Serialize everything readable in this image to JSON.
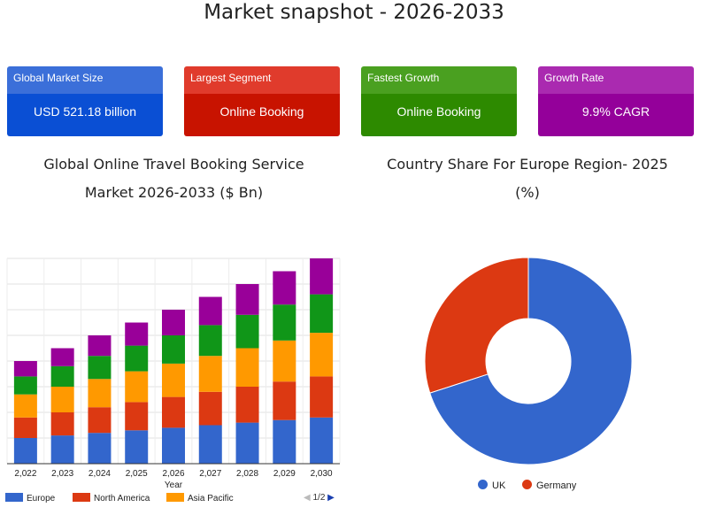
{
  "page_title": "Market snapshot - 2026-2033",
  "cards": [
    {
      "label": "Global Market Size",
      "value": "USD 521.18 billion",
      "header_color": "#3b6fd9",
      "body_color": "#0a4fd4"
    },
    {
      "label": "Largest Segment",
      "value": "Online Booking",
      "header_color": "#e03b2c",
      "body_color": "#c81300"
    },
    {
      "label": "Fastest Growth",
      "value": "Online Booking",
      "header_color": "#4aa020",
      "body_color": "#2d8a00"
    },
    {
      "label": "Growth Rate",
      "value": "9.9% CAGR",
      "header_color": "#aa2ab0",
      "body_color": "#94009a"
    }
  ],
  "bar_chart_title": {
    "line1": "Global Online Travel Booking Service",
    "line2": "Market 2026-2033 ($ Bn)"
  },
  "pie_chart_title": {
    "line1": "Country Share For Europe Region- 2025",
    "line2": "(%)"
  },
  "legend_pager": {
    "prev": "◀",
    "page": "1/2",
    "next": "▶"
  },
  "chart_data": [
    {
      "type": "bar",
      "stacked": true,
      "title": "Global Online Travel Booking Service Market 2026-2033 ($ Bn)",
      "xlabel": "Year",
      "ylabel": "",
      "categories": [
        "2,022",
        "2,023",
        "2,024",
        "2,025",
        "2,026",
        "2,027",
        "2,028",
        "2,029",
        "2,030"
      ],
      "ylim": [
        0,
        80
      ],
      "grid": true,
      "legend_position": "bottom",
      "series": [
        {
          "name": "Europe",
          "color": "#3366cc",
          "values": [
            10,
            11,
            12,
            13,
            14,
            15,
            16,
            17,
            18
          ]
        },
        {
          "name": "North America",
          "color": "#dc3912",
          "values": [
            8,
            9,
            10,
            11,
            12,
            13,
            14,
            15,
            16
          ]
        },
        {
          "name": "Asia Pacific",
          "color": "#ff9900",
          "values": [
            9,
            10,
            11,
            12,
            13,
            14,
            15,
            16,
            17
          ]
        },
        {
          "values": [
            7,
            8,
            9,
            10,
            11,
            12,
            13,
            14,
            15
          ],
          "color": "#109618"
        },
        {
          "values": [
            6,
            7,
            8,
            9,
            10,
            11,
            12,
            13,
            14
          ],
          "color": "#990099"
        }
      ]
    },
    {
      "type": "pie",
      "donut": true,
      "title": "Country Share For Europe Region- 2025 (%)",
      "legend_position": "bottom",
      "categories": [
        "UK",
        "Germany"
      ],
      "values": [
        70,
        30
      ],
      "colors": [
        "#3366cc",
        "#dc3912"
      ]
    }
  ]
}
